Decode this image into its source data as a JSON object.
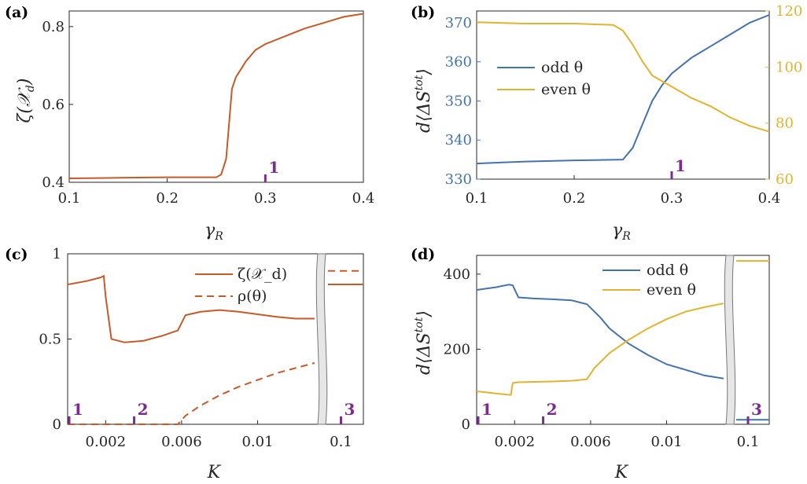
{
  "colors": {
    "orange": "#c65a28",
    "blue": "#4472b0",
    "yellow": "#e0b431",
    "purple": "#7b2d8e",
    "axis": "#262626"
  },
  "chart_data": [
    {
      "panel": "(a)",
      "type": "line",
      "xlabel": "γ_R",
      "ylabel": "ζ(𝒳_d)",
      "xlim": [
        0.1,
        0.4
      ],
      "ylim": [
        0.4,
        0.84
      ],
      "xticks": [
        "0.1",
        "0.2",
        "0.3",
        "0.4"
      ],
      "yticks": [
        "0.4",
        "0.6",
        "0.8"
      ],
      "markers": [
        {
          "x": 0.3,
          "label": "1"
        }
      ],
      "series": [
        {
          "x": [
            0.1,
            0.13,
            0.16,
            0.2,
            0.23,
            0.25,
            0.255,
            0.26,
            0.263,
            0.266,
            0.27,
            0.275,
            0.28,
            0.29,
            0.3,
            0.32,
            0.34,
            0.36,
            0.38,
            0.4
          ],
          "y": [
            0.41,
            0.411,
            0.412,
            0.413,
            0.413,
            0.413,
            0.42,
            0.46,
            0.55,
            0.64,
            0.67,
            0.69,
            0.71,
            0.74,
            0.755,
            0.775,
            0.795,
            0.81,
            0.825,
            0.833
          ]
        }
      ]
    },
    {
      "panel": "(b)",
      "type": "line",
      "xlabel": "γ_R",
      "ylabel": "d⟨ΔS^tot⟩",
      "xlim": [
        0.1,
        0.4
      ],
      "ylim": [
        330,
        373
      ],
      "y2lim": [
        60,
        120
      ],
      "xticks": [
        "0.1",
        "0.2",
        "0.3",
        "0.4"
      ],
      "yticks": [
        "330",
        "340",
        "350",
        "360",
        "370"
      ],
      "y2ticks": [
        "60",
        "80",
        "100",
        "120"
      ],
      "markers": [
        {
          "x": 0.3,
          "label": "1"
        }
      ],
      "legend": {
        "placement": "center-left"
      },
      "series": [
        {
          "name": "odd θ",
          "axis": "left",
          "x": [
            0.1,
            0.15,
            0.2,
            0.25,
            0.26,
            0.27,
            0.28,
            0.29,
            0.3,
            0.32,
            0.34,
            0.36,
            0.38,
            0.4
          ],
          "y": [
            334,
            334.5,
            334.8,
            335,
            338,
            344,
            350,
            354,
            357,
            361,
            364,
            367,
            370,
            372
          ]
        },
        {
          "name": "even θ",
          "axis": "right",
          "x": [
            0.1,
            0.15,
            0.2,
            0.24,
            0.25,
            0.26,
            0.27,
            0.28,
            0.29,
            0.3,
            0.32,
            0.34,
            0.36,
            0.38,
            0.4
          ],
          "y": [
            116,
            115.5,
            115.5,
            115,
            113,
            108,
            102,
            97,
            95,
            93,
            89,
            86,
            82,
            79,
            77
          ]
        }
      ]
    },
    {
      "panel": "(c)",
      "type": "line",
      "xlabel": "K",
      "ylabel": "",
      "ylim": [
        0,
        1
      ],
      "xticks": [
        "0.002",
        "0.006",
        "0.01"
      ],
      "xticks_break": [
        "0.1"
      ],
      "yticks": [
        "0",
        "0.5",
        "1"
      ],
      "markers": [
        {
          "x": 0.0,
          "label": "1"
        },
        {
          "x": 0.0035,
          "label": "2"
        },
        {
          "x": 0.1,
          "label": "3",
          "segment": "break"
        }
      ],
      "legend": {
        "placement": "top-right"
      },
      "series": [
        {
          "name": "ζ(𝒳_d)",
          "style": "solid",
          "x": [
            0.0,
            0.001,
            0.0017,
            0.0019,
            0.002,
            0.0023,
            0.003,
            0.004,
            0.005,
            0.0058,
            0.0062,
            0.007,
            0.008,
            0.009,
            0.01,
            0.011,
            0.012,
            0.013
          ],
          "y": [
            0.82,
            0.84,
            0.86,
            0.87,
            0.75,
            0.5,
            0.48,
            0.49,
            0.52,
            0.55,
            0.64,
            0.66,
            0.67,
            0.66,
            0.645,
            0.63,
            0.62,
            0.62
          ],
          "break_value": 0.82
        },
        {
          "name": "ρ(θ)",
          "style": "dashed",
          "x": [
            0.0,
            0.002,
            0.004,
            0.0058,
            0.0062,
            0.007,
            0.008,
            0.009,
            0.01,
            0.011,
            0.012,
            0.013
          ],
          "y": [
            0.0,
            0.0,
            0.0,
            0.0,
            0.05,
            0.11,
            0.17,
            0.22,
            0.26,
            0.3,
            0.33,
            0.36
          ],
          "break_value": 0.9
        }
      ]
    },
    {
      "panel": "(d)",
      "type": "line",
      "xlabel": "K",
      "ylabel": "d⟨ΔS^tot⟩",
      "ylim": [
        0,
        450
      ],
      "xticks": [
        "0.002",
        "0.006",
        "0.01"
      ],
      "xticks_break": [
        "0.1"
      ],
      "yticks": [
        "0",
        "200",
        "400"
      ],
      "markers": [
        {
          "x": 0.0,
          "label": "1"
        },
        {
          "x": 0.0035,
          "label": "2"
        },
        {
          "x": 0.1,
          "label": "3",
          "segment": "break"
        }
      ],
      "legend": {
        "placement": "top-right"
      },
      "series": [
        {
          "name": "odd θ",
          "x": [
            0.0,
            0.001,
            0.0017,
            0.0019,
            0.0022,
            0.003,
            0.004,
            0.005,
            0.0058,
            0.0065,
            0.007,
            0.008,
            0.009,
            0.01,
            0.011,
            0.012,
            0.013
          ],
          "y": [
            358,
            365,
            372,
            370,
            338,
            335,
            333,
            330,
            320,
            285,
            255,
            215,
            185,
            160,
            145,
            130,
            122
          ],
          "break_value": 12
        },
        {
          "name": "even θ",
          "x": [
            0.0,
            0.001,
            0.0018,
            0.0019,
            0.0022,
            0.003,
            0.004,
            0.005,
            0.0058,
            0.0062,
            0.007,
            0.008,
            0.009,
            0.01,
            0.011,
            0.012,
            0.013
          ],
          "y": [
            88,
            82,
            78,
            110,
            112,
            113,
            114,
            116,
            120,
            150,
            190,
            225,
            255,
            280,
            300,
            312,
            322
          ],
          "break_value": 435
        }
      ]
    }
  ]
}
